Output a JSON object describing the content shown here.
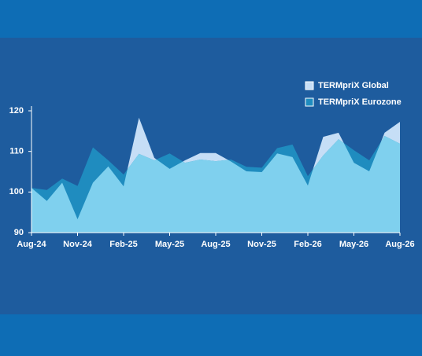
{
  "chart_data": {
    "type": "area",
    "categories": [
      "Aug-24",
      null,
      null,
      "Nov-24",
      null,
      null,
      "Feb-25",
      null,
      null,
      "May-25",
      null,
      null,
      "Aug-25",
      null,
      null,
      "Nov-25",
      null,
      null,
      "Feb-26",
      null,
      null,
      "May-26",
      null,
      null,
      "Aug-26"
    ],
    "series": [
      {
        "name": "TERMpriX Global",
        "color": "#c6def6",
        "values": [
          101,
          97.8,
          102.3,
          93.3,
          102.3,
          106.3,
          101.4,
          118.3,
          108.4,
          105.7,
          107.8,
          109.6,
          109.6,
          107.5,
          105.1,
          104.9,
          109.5,
          108.6,
          101.6,
          113.6,
          114.6,
          107.2,
          105.1,
          114.6,
          117.3
        ]
      },
      {
        "name": "TERMpriX Eurozone",
        "color": "#1f8cbf",
        "values": [
          101,
          100.5,
          103.3,
          101.5,
          111,
          107.8,
          104.3,
          109.4,
          107.8,
          109.5,
          107.2,
          108,
          107.6,
          108,
          106.2,
          106,
          110.8,
          111.7,
          103.9,
          109,
          113,
          110.3,
          107.8,
          113.8,
          111.9
        ]
      }
    ],
    "ylim": [
      90,
      120
    ],
    "yticks": [
      90,
      100,
      110,
      120
    ],
    "legend": "top-right"
  }
}
